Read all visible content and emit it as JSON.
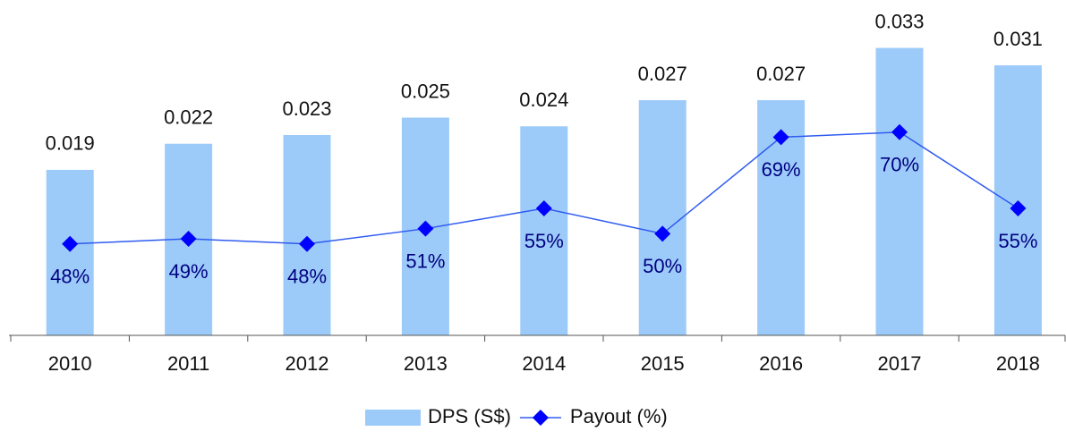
{
  "chart_data": {
    "type": "bar-line",
    "categories": [
      "2010",
      "2011",
      "2012",
      "2013",
      "2014",
      "2015",
      "2016",
      "2017",
      "2018"
    ],
    "series": [
      {
        "name": "DPS (S$)",
        "type": "bar",
        "color": "#9dcbf9",
        "values": [
          0.019,
          0.022,
          0.023,
          0.025,
          0.024,
          0.027,
          0.027,
          0.033,
          0.031
        ]
      },
      {
        "name": "Payout (%)",
        "type": "line",
        "axis": "y2",
        "color": "#2f5bf0",
        "marker_color": "#0000ff",
        "values": [
          48,
          49,
          48,
          51,
          55,
          50,
          69,
          70,
          55
        ],
        "value_labels": [
          "48%",
          "49%",
          "48%",
          "51%",
          "55%",
          "50%",
          "69%",
          "70%",
          "55%"
        ]
      }
    ],
    "ylim": [
      0,
      0.0385
    ],
    "y2lim": [
      30,
      96
    ],
    "legend": "bottom"
  }
}
